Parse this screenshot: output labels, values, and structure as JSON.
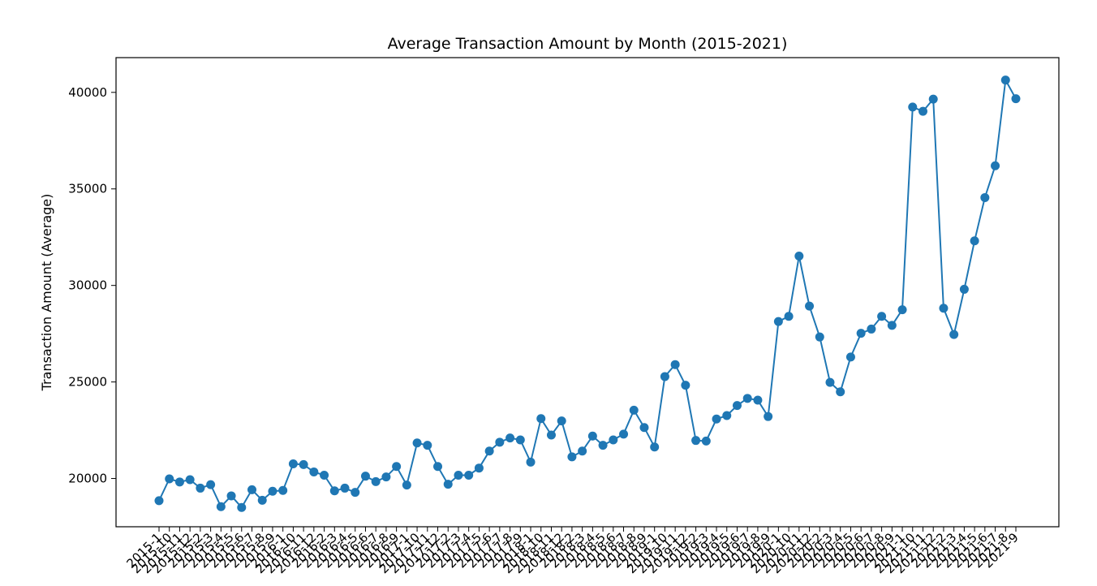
{
  "chart_data": {
    "type": "line",
    "title": "Average Transaction Amount by Month (2015-2021)",
    "xlabel": "",
    "ylabel": "Transaction Amount (Average)",
    "x": [
      "2015-1",
      "2015-10",
      "2015-11",
      "2015-12",
      "2015-2",
      "2015-3",
      "2015-4",
      "2015-5",
      "2015-6",
      "2015-7",
      "2015-8",
      "2015-9",
      "2016-1",
      "2016-10",
      "2016-11",
      "2016-12",
      "2016-2",
      "2016-3",
      "2016-4",
      "2016-5",
      "2016-6",
      "2016-7",
      "2016-8",
      "2016-9",
      "2017-1",
      "2017-10",
      "2017-11",
      "2017-12",
      "2017-2",
      "2017-3",
      "2017-4",
      "2017-5",
      "2017-6",
      "2017-7",
      "2017-8",
      "2017-9",
      "2018-1",
      "2018-10",
      "2018-11",
      "2018-12",
      "2018-2",
      "2018-3",
      "2018-4",
      "2018-5",
      "2018-6",
      "2018-7",
      "2018-8",
      "2018-9",
      "2019-1",
      "2019-10",
      "2019-11",
      "2019-12",
      "2019-2",
      "2019-3",
      "2019-4",
      "2019-5",
      "2019-6",
      "2019-7",
      "2019-8",
      "2019-9",
      "2020-1",
      "2020-10",
      "2020-11",
      "2020-12",
      "2020-2",
      "2020-3",
      "2020-4",
      "2020-5",
      "2020-6",
      "2020-7",
      "2020-8",
      "2020-9",
      "2021-1",
      "2021-10",
      "2021-11",
      "2021-12",
      "2021-2",
      "2021-3",
      "2021-4",
      "2021-5",
      "2021-6",
      "2021-7",
      "2021-8",
      "2021-9"
    ],
    "values": [
      18850,
      19980,
      19820,
      19940,
      19500,
      19680,
      18540,
      19100,
      18500,
      19420,
      18870,
      19340,
      19380,
      20760,
      20720,
      20340,
      20170,
      19360,
      19500,
      19280,
      20120,
      19840,
      20080,
      20620,
      19660,
      21840,
      21720,
      20620,
      19700,
      20170,
      20170,
      20540,
      21420,
      21880,
      22100,
      22000,
      20850,
      23100,
      22250,
      22980,
      21120,
      21420,
      22200,
      21720,
      22000,
      22300,
      23540,
      22640,
      21630,
      25280,
      25900,
      24830,
      21970,
      21940,
      23080,
      23260,
      23780,
      24150,
      24060,
      23210,
      28130,
      28400,
      31520,
      28930,
      27330,
      24980,
      24490,
      26290,
      27520,
      27740,
      28400,
      27930,
      28740,
      39240,
      39020,
      39650,
      28820,
      27460,
      29800,
      32310,
      34550,
      36200,
      40640,
      39670
    ],
    "ylim": [
      17500,
      41800
    ],
    "yticks": [
      20000,
      25000,
      30000,
      35000,
      40000
    ],
    "ytick_labels": [
      "20000",
      "25000",
      "30000",
      "35000",
      "40000"
    ],
    "grid": false,
    "series_color": "#1f77b4"
  }
}
